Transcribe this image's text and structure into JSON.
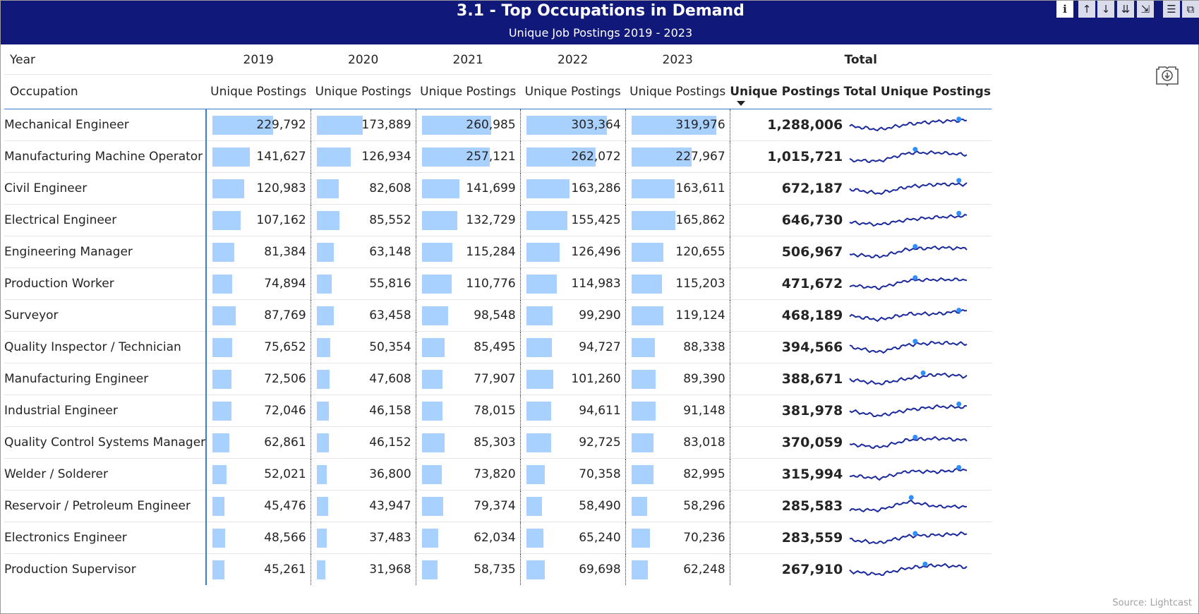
{
  "header": {
    "title": "3.1 - Top Occupations in Demand",
    "subtitle": "Unique Job Postings 2019 - 2023"
  },
  "toolbar": {
    "info_label": "i",
    "up_label": "↑",
    "down_label": "↓",
    "expand_label": "⇊",
    "hierarchy_label": "⇲",
    "filter_label": "☰",
    "focus_label": "⧉"
  },
  "columns": {
    "year_label": "Year",
    "years": [
      "2019",
      "2020",
      "2021",
      "2022",
      "2023"
    ],
    "total_label": "Total",
    "occupation_label": "Occupation",
    "measure_label": "Unique Postings",
    "total_measure_label": "Unique Postings",
    "sparkline_label": "Total Unique Postings"
  },
  "max_value": 319976,
  "rows": [
    {
      "name": "Mechanical Engineer",
      "v": [
        "229,792",
        "173,889",
        "260,985",
        "303,364",
        "319,976"
      ],
      "n": [
        229792,
        173889,
        260985,
        303364,
        319976
      ],
      "total": "1,288,006",
      "peak": 0.93
    },
    {
      "name": "Manufacturing Machine Operator",
      "v": [
        "141,627",
        "126,934",
        "257,121",
        "262,072",
        "227,967"
      ],
      "n": [
        141627,
        126934,
        257121,
        262072,
        227967
      ],
      "total": "1,015,721",
      "peak": 0.56
    },
    {
      "name": "Civil Engineer",
      "v": [
        "120,983",
        "82,608",
        "141,699",
        "163,286",
        "163,611"
      ],
      "n": [
        120983,
        82608,
        141699,
        163286,
        163611
      ],
      "total": "672,187",
      "peak": 0.93
    },
    {
      "name": "Electrical Engineer",
      "v": [
        "107,162",
        "85,552",
        "132,729",
        "155,425",
        "165,862"
      ],
      "n": [
        107162,
        85552,
        132729,
        155425,
        165862
      ],
      "total": "646,730",
      "peak": 0.93
    },
    {
      "name": "Engineering Manager",
      "v": [
        "81,384",
        "63,148",
        "115,284",
        "126,496",
        "120,655"
      ],
      "n": [
        81384,
        63148,
        115284,
        126496,
        120655
      ],
      "total": "506,967",
      "peak": 0.56
    },
    {
      "name": "Production Worker",
      "v": [
        "74,894",
        "55,816",
        "110,776",
        "114,983",
        "115,203"
      ],
      "n": [
        74894,
        55816,
        110776,
        114983,
        115203
      ],
      "total": "471,672",
      "peak": 0.56
    },
    {
      "name": "Surveyor",
      "v": [
        "87,769",
        "63,458",
        "98,548",
        "99,290",
        "119,124"
      ],
      "n": [
        87769,
        63458,
        98548,
        99290,
        119124
      ],
      "total": "468,189",
      "peak": 0.93
    },
    {
      "name": "Quality Inspector / Technician",
      "v": [
        "75,652",
        "50,354",
        "85,495",
        "94,727",
        "88,338"
      ],
      "n": [
        75652,
        50354,
        85495,
        94727,
        88338
      ],
      "total": "394,566",
      "peak": 0.56
    },
    {
      "name": "Manufacturing Engineer",
      "v": [
        "72,506",
        "47,608",
        "77,907",
        "101,260",
        "89,390"
      ],
      "n": [
        72506,
        47608,
        77907,
        101260,
        89390
      ],
      "total": "388,671",
      "peak": 0.62
    },
    {
      "name": "Industrial Engineer",
      "v": [
        "72,046",
        "46,158",
        "78,015",
        "94,611",
        "91,148"
      ],
      "n": [
        72046,
        46158,
        78015,
        94611,
        91148
      ],
      "total": "381,978",
      "peak": 0.93
    },
    {
      "name": "Quality Control Systems Manager",
      "v": [
        "62,861",
        "46,152",
        "85,303",
        "92,725",
        "83,018"
      ],
      "n": [
        62861,
        46152,
        85303,
        92725,
        83018
      ],
      "total": "370,059",
      "peak": 0.56
    },
    {
      "name": "Welder / Solderer",
      "v": [
        "52,021",
        "36,800",
        "73,820",
        "70,358",
        "82,995"
      ],
      "n": [
        52021,
        36800,
        73820,
        70358,
        82995
      ],
      "total": "315,994",
      "peak": 0.93
    },
    {
      "name": "Reservoir / Petroleum Engineer",
      "v": [
        "45,476",
        "43,947",
        "79,374",
        "58,490",
        "58,296"
      ],
      "n": [
        45476,
        43947,
        79374,
        58490,
        58296
      ],
      "total": "285,583",
      "peak": 0.53
    },
    {
      "name": "Electronics Engineer",
      "v": [
        "48,566",
        "37,483",
        "62,034",
        "65,240",
        "70,236"
      ],
      "n": [
        48566,
        37483,
        62034,
        65240,
        70236
      ],
      "total": "283,559",
      "peak": 0.56
    },
    {
      "name": "Production Supervisor",
      "v": [
        "45,261",
        "31,968",
        "58,735",
        "69,698",
        "62,248"
      ],
      "n": [
        45261,
        31968,
        58735,
        69698,
        62248
      ],
      "total": "267,910",
      "peak": 0.65
    }
  ],
  "colors": {
    "header_bg": "#10197a",
    "bar_fill": "#a8d1ff",
    "sparkline": "#1a2a9c",
    "sparkline_peak": "#2f8fff",
    "accent_line": "#3a7bd5"
  },
  "footer": {
    "source": "Source: Lightcast"
  }
}
